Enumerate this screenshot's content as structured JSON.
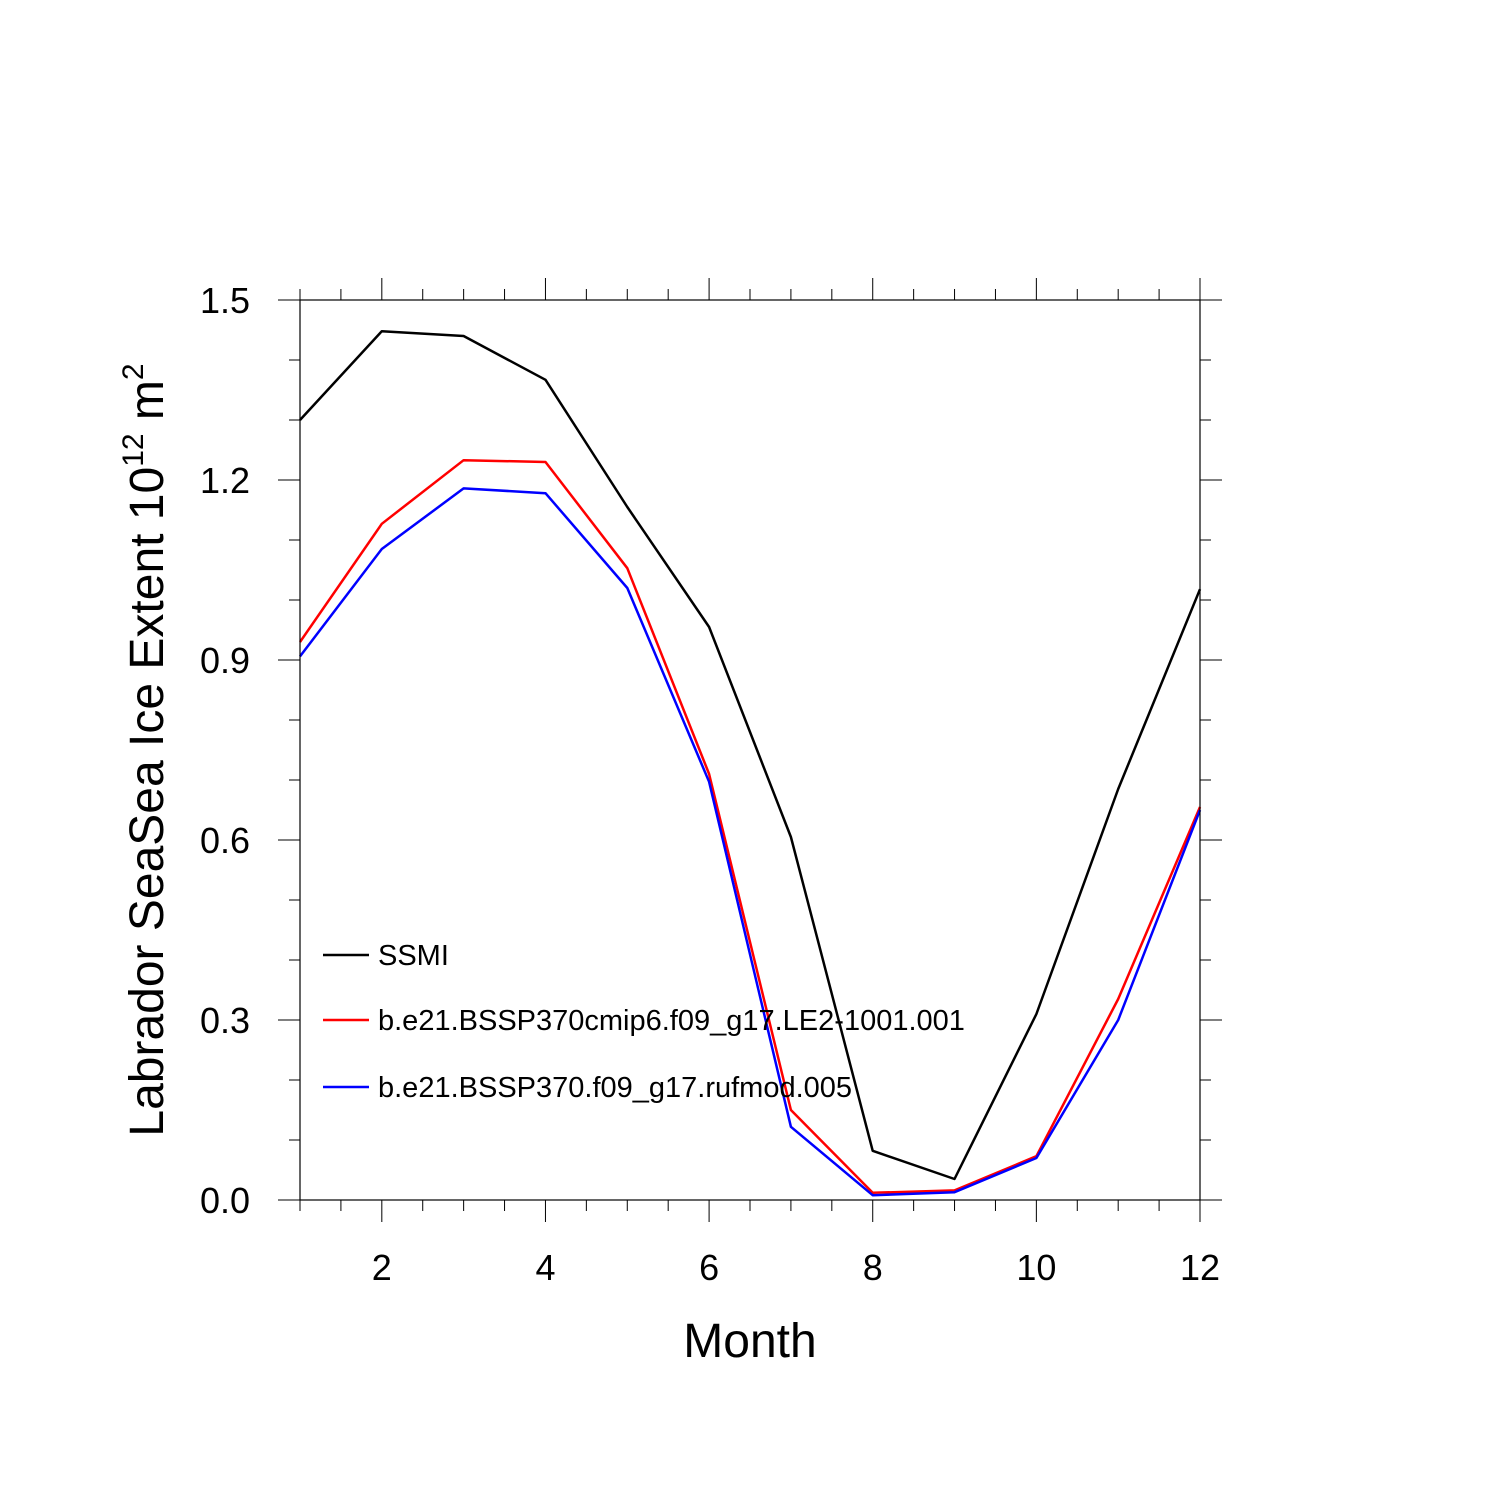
{
  "chart_data": {
    "type": "line",
    "title": "",
    "xlabel": "Month",
    "ylabel_main": "Labrador SeaSea Ice Extent 10",
    "ylabel_sup": "12",
    "ylabel_unit": " m",
    "ylabel_unit_sup": "2",
    "xlim": [
      1,
      12
    ],
    "ylim": [
      0,
      1.5
    ],
    "xticks": [
      2,
      4,
      6,
      8,
      10,
      12
    ],
    "xtick_labels": [
      "2",
      "4",
      "6",
      "8",
      "10",
      "12"
    ],
    "yticks": [
      0,
      0.3,
      0.6,
      0.9,
      1.2,
      1.5
    ],
    "ytick_labels": [
      "0.0",
      "0.3",
      "0.6",
      "0.9",
      "1.2",
      "1.5"
    ],
    "grid": false,
    "legend_position": "lower-left",
    "x": [
      1,
      2,
      3,
      4,
      5,
      6,
      7,
      8,
      9,
      10,
      11,
      12
    ],
    "series": [
      {
        "name": "SSMI",
        "color": "#000000",
        "values": [
          1.3,
          1.448,
          1.44,
          1.367,
          1.155,
          0.955,
          0.605,
          0.082,
          0.035,
          0.31,
          0.685,
          1.018
        ]
      },
      {
        "name": "b.e21.BSSP370cmip6.f09_g17.LE2-1001.001",
        "color": "#ff0000",
        "values": [
          0.93,
          1.127,
          1.233,
          1.23,
          1.053,
          0.71,
          0.15,
          0.012,
          0.016,
          0.073,
          0.335,
          0.655
        ]
      },
      {
        "name": "b.e21.BSSP370.f09_g17.rufmod.005",
        "color": "#0000ff",
        "values": [
          0.906,
          1.085,
          1.186,
          1.178,
          1.02,
          0.697,
          0.122,
          0.008,
          0.013,
          0.07,
          0.3,
          0.65
        ]
      }
    ]
  }
}
